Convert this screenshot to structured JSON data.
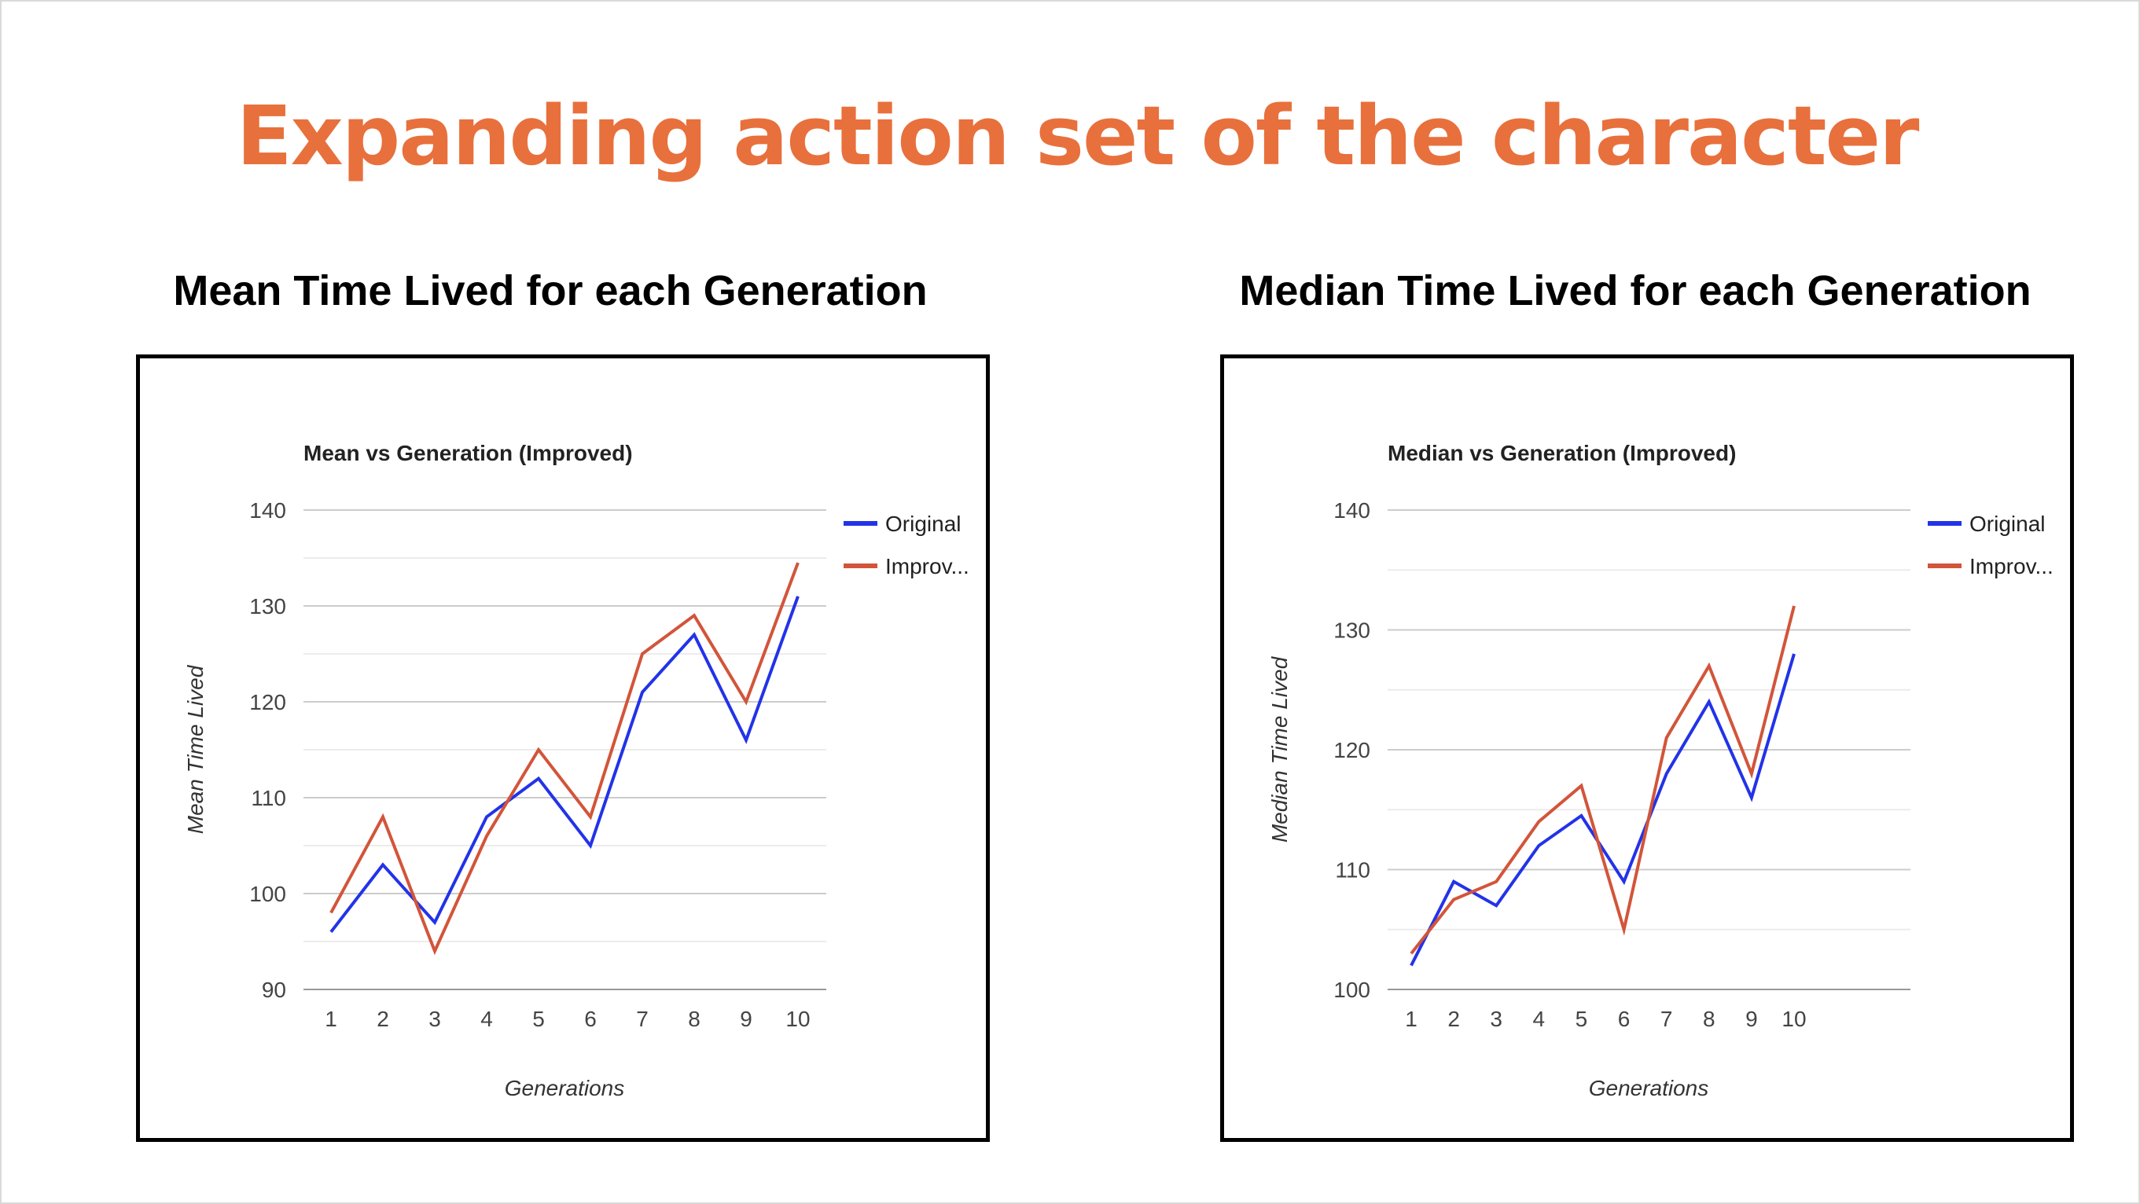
{
  "slide": {
    "title": "Expanding action set of the character",
    "left_heading": "Mean Time Lived for each Generation",
    "right_heading": "Median Time Lived for each Generation"
  },
  "chart_data": [
    {
      "type": "line",
      "title": "Mean vs Generation (Improved)",
      "xlabel": "Generations",
      "ylabel": "Mean Time Lived",
      "x": [
        1,
        2,
        3,
        4,
        5,
        6,
        7,
        8,
        9,
        10
      ],
      "ylim": [
        90,
        140
      ],
      "yticks": [
        90,
        100,
        110,
        120,
        130,
        140
      ],
      "grid": true,
      "legend_position": "right",
      "series": [
        {
          "name": "Original",
          "color": "#2233e8",
          "values": [
            96,
            103,
            97,
            108,
            112,
            105,
            121,
            127,
            116,
            131
          ]
        },
        {
          "name": "Improv...",
          "color": "#d2553a",
          "values": [
            98,
            108,
            94,
            106,
            115,
            108,
            125,
            129,
            120,
            134.5
          ]
        }
      ]
    },
    {
      "type": "line",
      "title": "Median vs Generation (Improved)",
      "xlabel": "Generations",
      "ylabel": "Median Time Lived",
      "x": [
        1,
        2,
        3,
        4,
        5,
        6,
        7,
        8,
        9,
        10
      ],
      "ylim": [
        100,
        140
      ],
      "yticks": [
        100,
        110,
        120,
        130,
        140
      ],
      "grid": true,
      "legend_position": "right",
      "series": [
        {
          "name": "Original",
          "color": "#2233e8",
          "values": [
            102,
            109,
            107,
            112,
            114.5,
            109,
            118,
            124,
            116,
            128
          ]
        },
        {
          "name": "Improv...",
          "color": "#d2553a",
          "values": [
            103,
            107.5,
            109,
            114,
            117,
            105,
            121,
            127,
            118,
            132
          ]
        }
      ]
    }
  ]
}
